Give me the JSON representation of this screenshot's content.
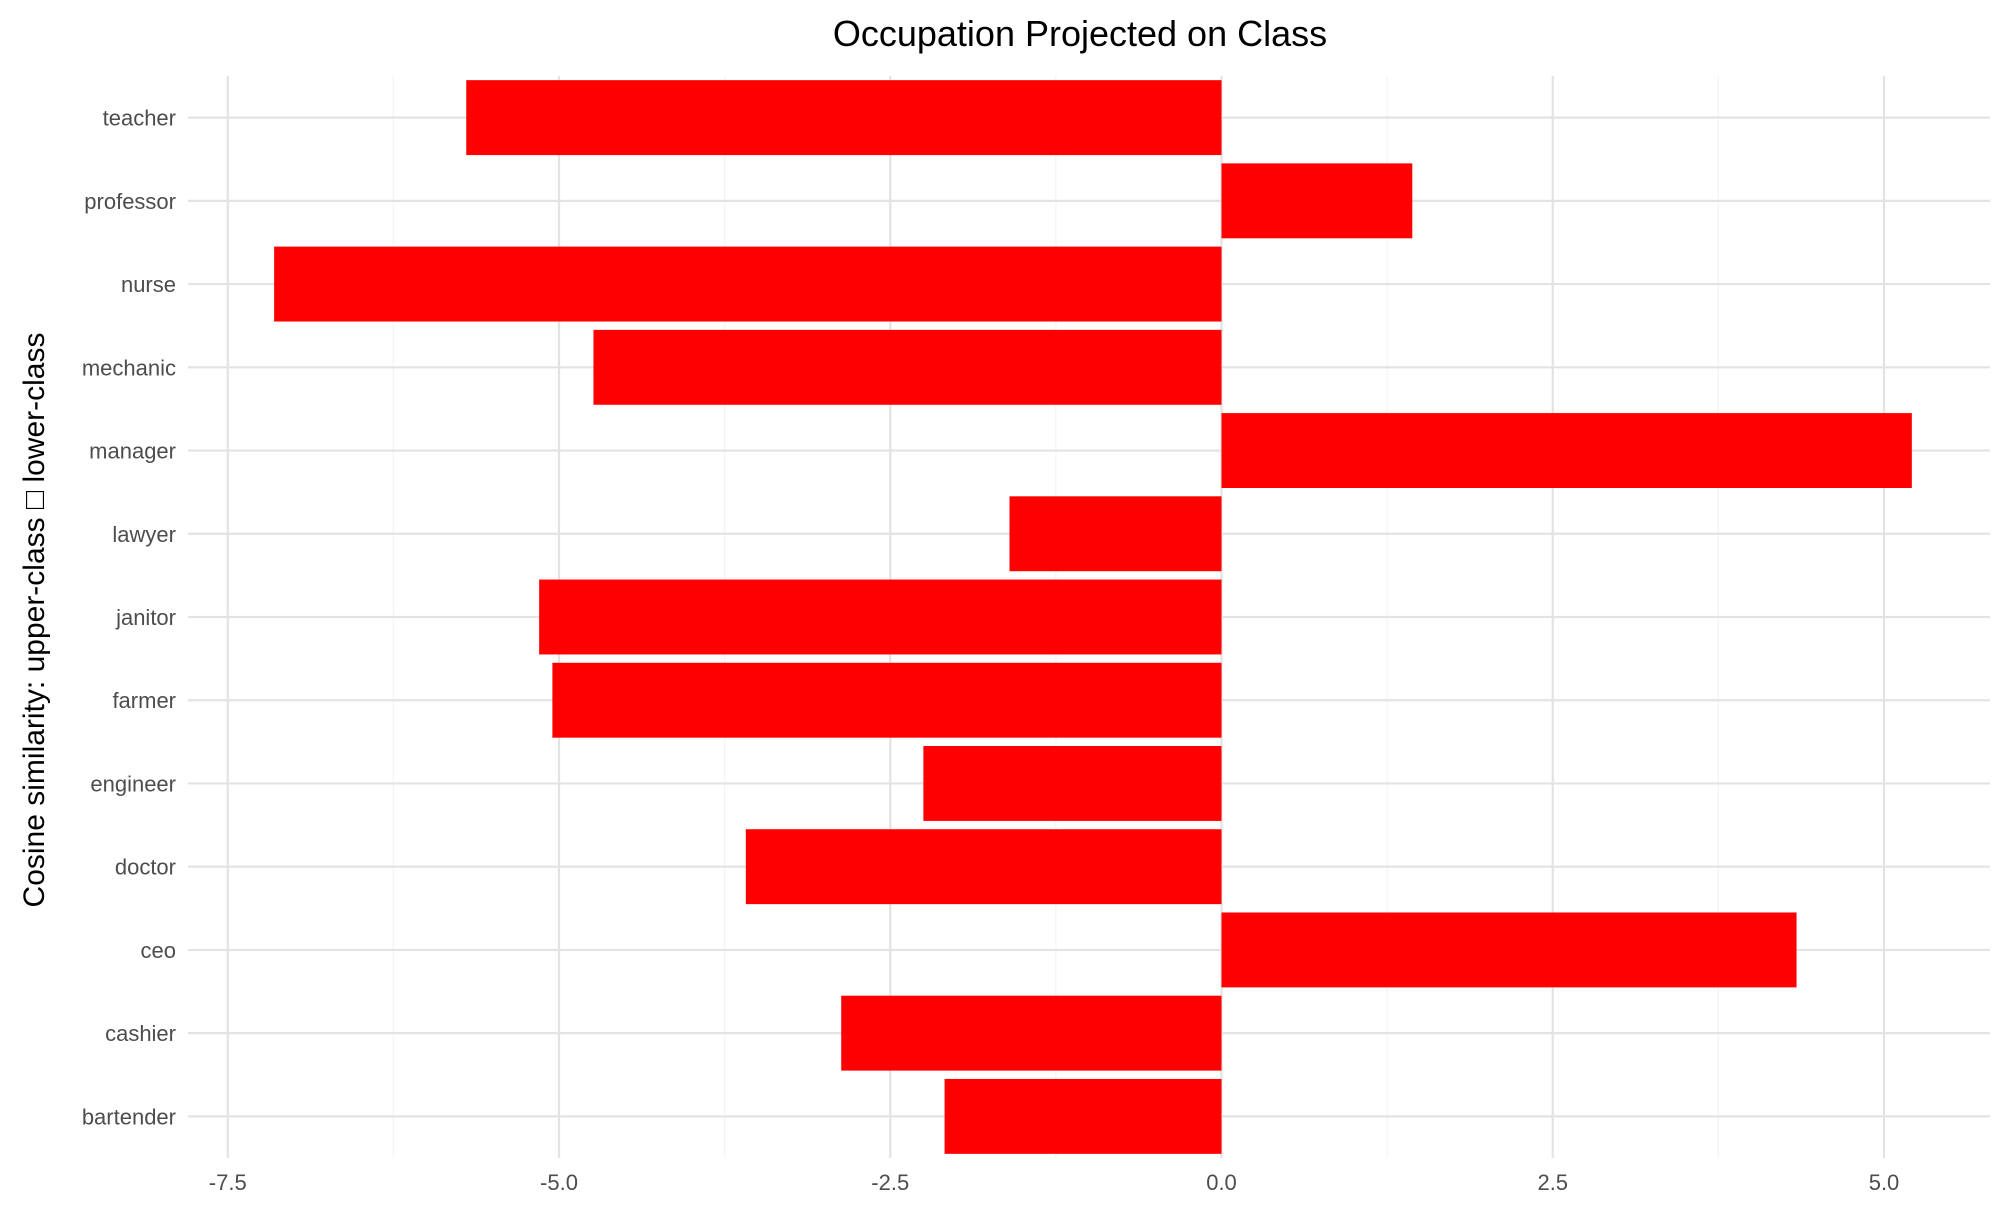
{
  "chart_data": {
    "type": "bar",
    "orientation": "horizontal",
    "title": "Occupation Projected on Class",
    "xlabel": "",
    "ylabel": "Cosine similarity: upper-class □ lower-class",
    "categories": [
      "teacher",
      "professor",
      "nurse",
      "mechanic",
      "manager",
      "lawyer",
      "janitor",
      "farmer",
      "engineer",
      "doctor",
      "ceo",
      "cashier",
      "bartender"
    ],
    "values": [
      -5.7,
      1.44,
      -7.15,
      -4.74,
      5.21,
      -1.6,
      -5.15,
      -5.05,
      -2.25,
      -3.59,
      4.34,
      -2.87,
      -2.09
    ],
    "xlim": [
      -7.8,
      5.8
    ],
    "xticks": [
      -7.5,
      -5.0,
      -2.5,
      0.0,
      2.5,
      5.0
    ],
    "xtick_labels": [
      "-7.5",
      "-5.0",
      "-2.5",
      "0.0",
      "2.5",
      "5.0"
    ],
    "bar_color": "#ff0000",
    "grid": true,
    "legend": "none"
  }
}
